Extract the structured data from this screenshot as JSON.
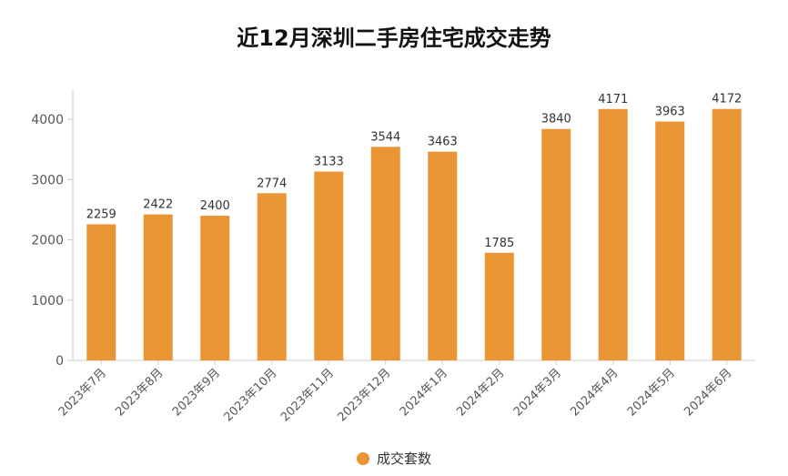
{
  "chart_data": {
    "type": "bar",
    "title": "近12月深圳二手房住宅成交走势",
    "categories": [
      "2023年7月",
      "2023年8月",
      "2023年9月",
      "2023年10月",
      "2023年11月",
      "2023年12月",
      "2024年1月",
      "2024年2月",
      "2024年3月",
      "2024年4月",
      "2024年5月",
      "2024年6月"
    ],
    "series": [
      {
        "name": "成交套数",
        "values": [
          2259,
          2422,
          2400,
          2774,
          3133,
          3544,
          3463,
          1785,
          3840,
          4171,
          3963,
          4172
        ]
      }
    ],
    "ylim": [
      0,
      4500
    ],
    "yticks": [
      0,
      1000,
      2000,
      3000,
      4000
    ],
    "grid": false,
    "legend": "bottom-center",
    "bar_color": "#E99534"
  }
}
